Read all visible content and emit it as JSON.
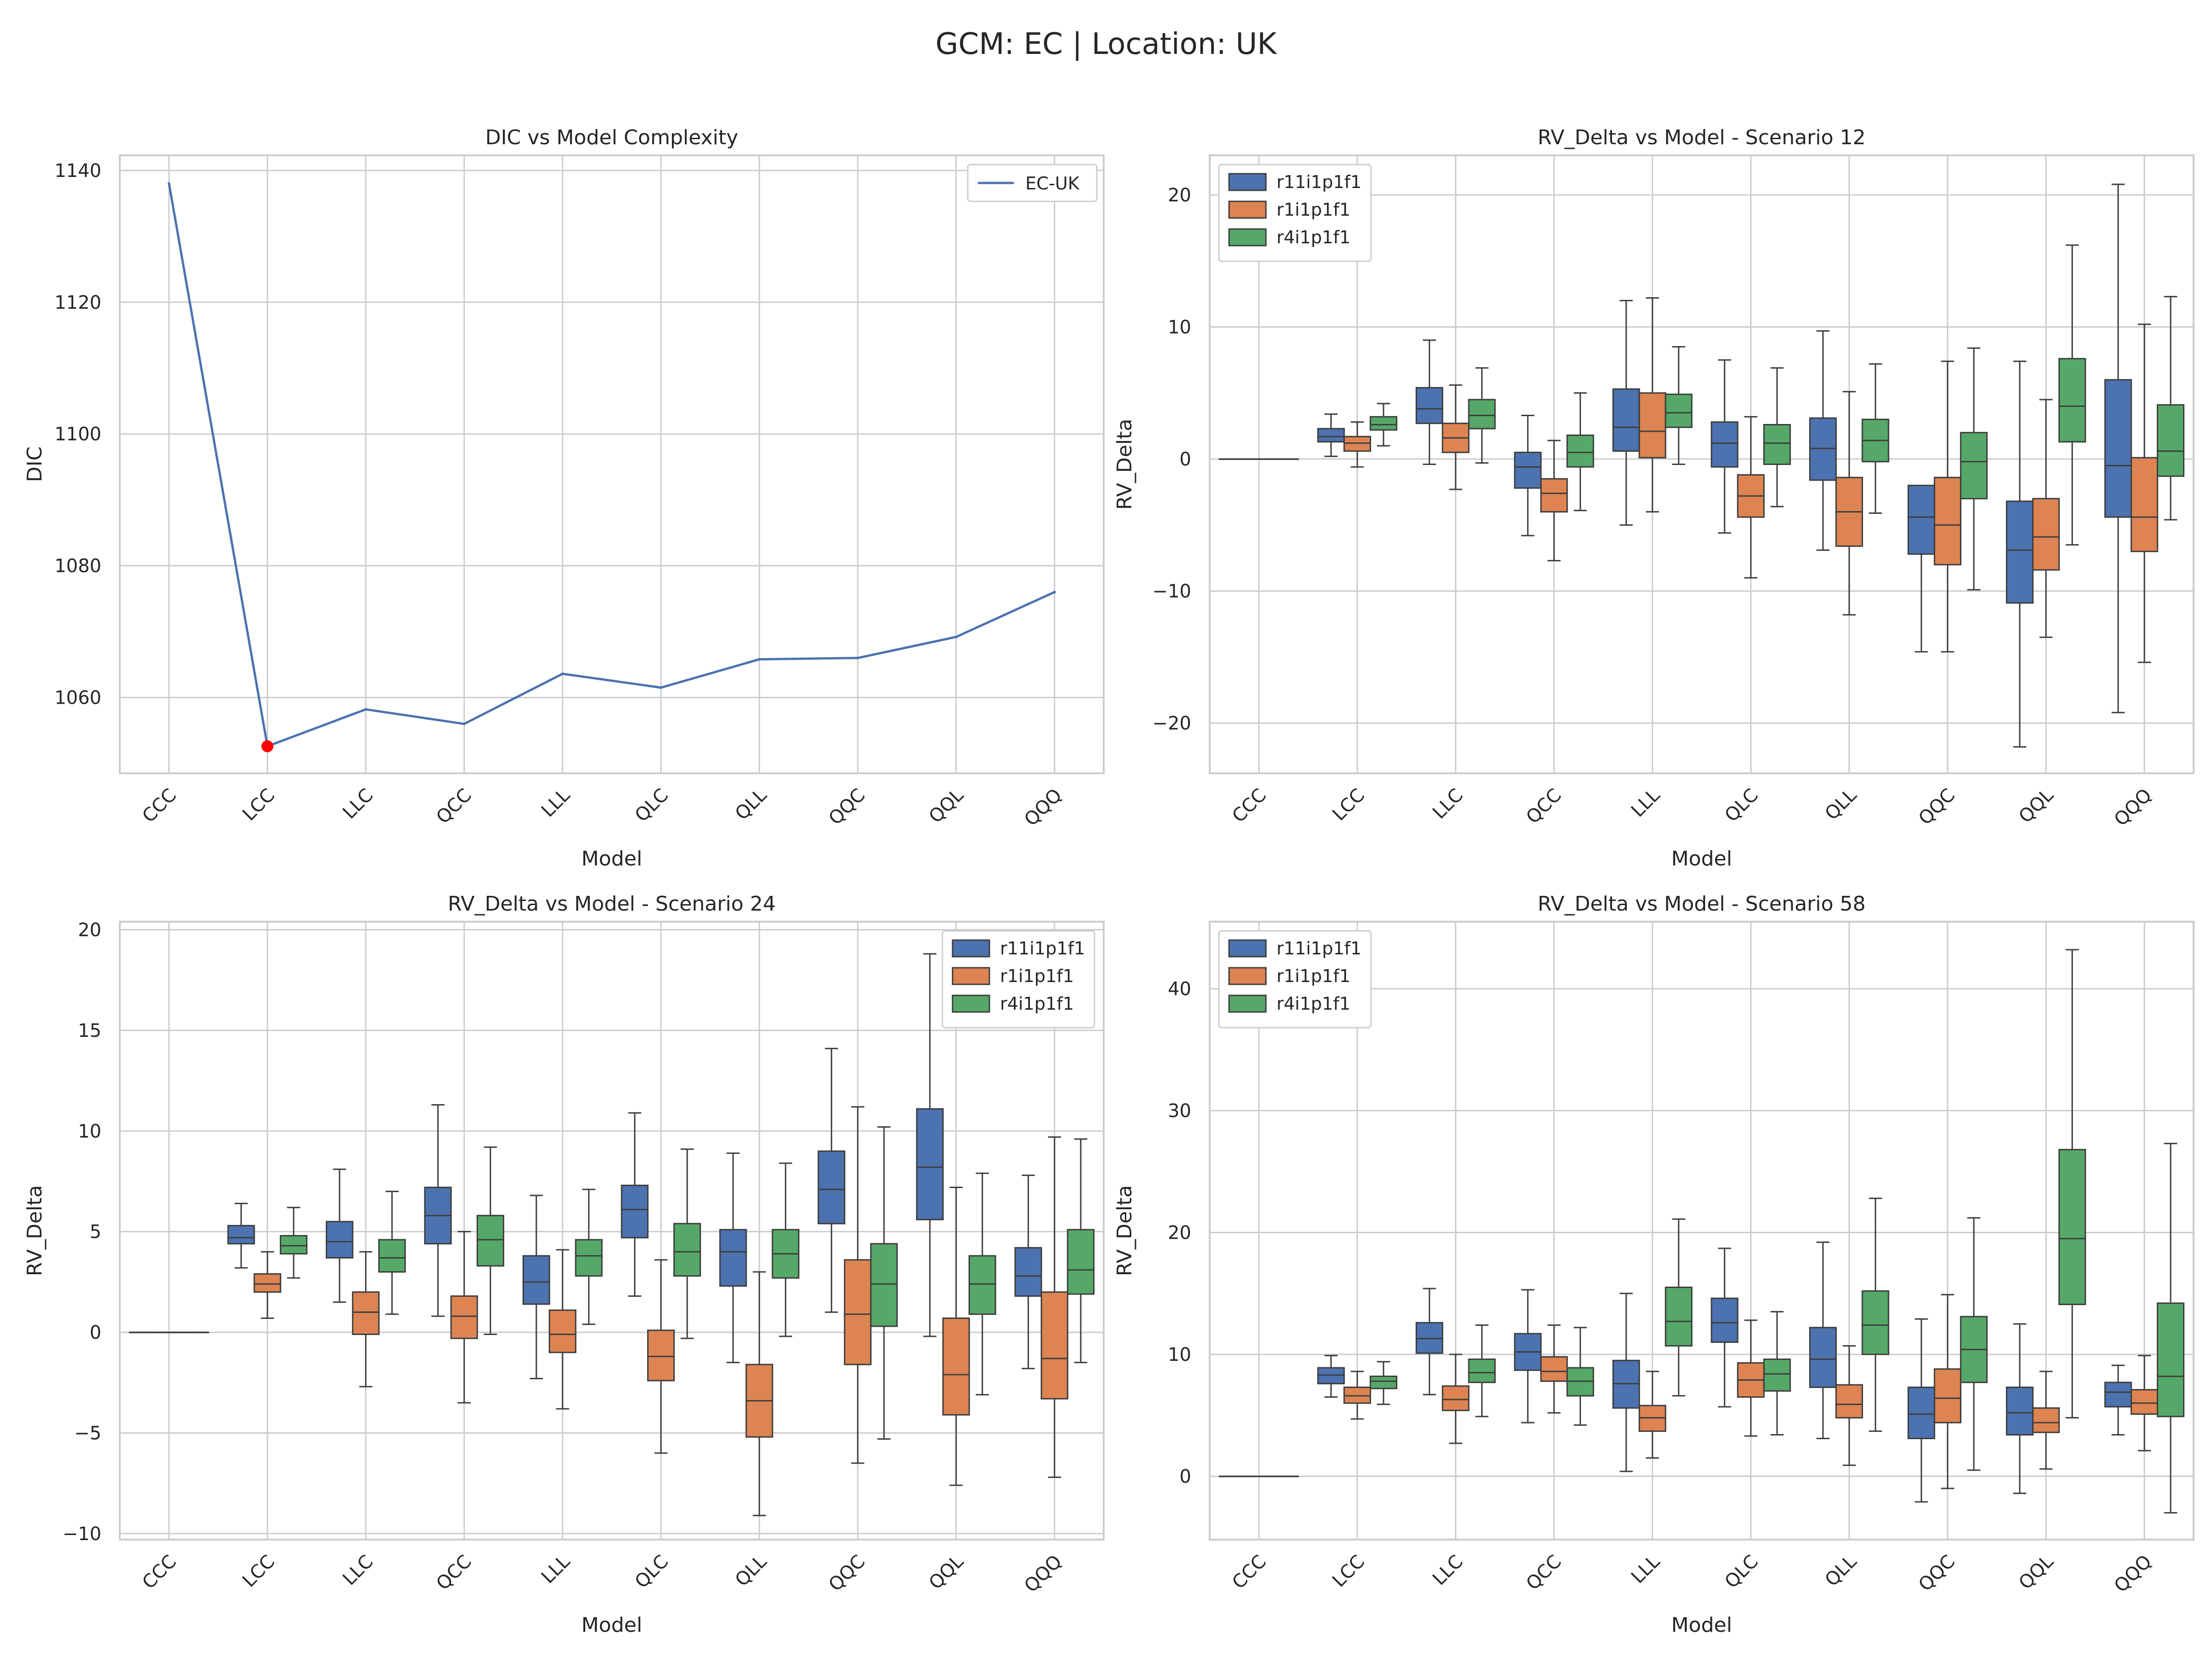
{
  "figure": {
    "suptitle": "GCM: EC | Location: UK"
  },
  "colors": {
    "line": "#4c72b0",
    "highlight": "#ff0000",
    "grid": "#cccccc",
    "axes_edge": "#cccccc",
    "box_edge": "#3d3d3d",
    "series": [
      "#4c72b0",
      "#dd8452",
      "#55a868"
    ]
  },
  "chart_data": [
    {
      "type": "line",
      "title": "DIC vs Model Complexity",
      "xlabel": "Model",
      "ylabel": "DIC",
      "categories": [
        "CCC",
        "LCC",
        "LLC",
        "QCC",
        "LLL",
        "QLC",
        "QLL",
        "QQC",
        "QQL",
        "QQQ"
      ],
      "series": [
        {
          "name": "EC-UK",
          "values": [
            1138,
            1052.6,
            1058.2,
            1056,
            1063.6,
            1061.5,
            1065.8,
            1066,
            1069.2,
            1076
          ]
        }
      ],
      "highlight_point": {
        "category": "LCC",
        "value": 1052.6,
        "color": "#ff0000"
      },
      "ylim": [
        1048.5,
        1142.3
      ],
      "yticks": [
        1060,
        1080,
        1100,
        1120,
        1140
      ],
      "ytick_labels": [
        "1060",
        "1080",
        "1100",
        "1120",
        "1140"
      ],
      "legend": "upper right",
      "grid": true
    },
    {
      "type": "box",
      "title": "RV_Delta vs Model - Scenario 12",
      "xlabel": "Model",
      "ylabel": "RV_Delta",
      "categories": [
        "CCC",
        "LCC",
        "LLC",
        "QCC",
        "LLL",
        "QLC",
        "QLL",
        "QQC",
        "QQL",
        "QQQ"
      ],
      "ylim": [
        -23.8,
        23
      ],
      "yticks": [
        -20,
        -10,
        0,
        10,
        20
      ],
      "ytick_labels": [
        "−20",
        "−10",
        "0",
        "10",
        "20"
      ],
      "legend": "upper left",
      "grid": true,
      "series": [
        {
          "name": "r11i1p1f1",
          "boxes": [
            {
              "whislo": 0,
              "q1": 0,
              "med": 0,
              "q3": 0,
              "whishi": 0
            },
            {
              "whislo": 0.2,
              "q1": 1.3,
              "med": 1.7,
              "q3": 2.3,
              "whishi": 3.4
            },
            {
              "whislo": -0.4,
              "q1": 2.7,
              "med": 3.8,
              "q3": 5.4,
              "whishi": 9
            },
            {
              "whislo": -5.8,
              "q1": -2.2,
              "med": -0.6,
              "q3": 0.5,
              "whishi": 3.3
            },
            {
              "whislo": -5,
              "q1": 0.6,
              "med": 2.4,
              "q3": 5.3,
              "whishi": 12
            },
            {
              "whislo": -5.6,
              "q1": -0.6,
              "med": 1.2,
              "q3": 2.8,
              "whishi": 7.5
            },
            {
              "whislo": -6.9,
              "q1": -1.6,
              "med": 0.8,
              "q3": 3.1,
              "whishi": 9.7
            },
            {
              "whislo": -14.6,
              "q1": -7.2,
              "med": -4.4,
              "q3": -2
            },
            {
              "whislo": -21.8,
              "q1": -10.9,
              "med": -6.9,
              "q3": -3.2,
              "whishi": 7.4
            },
            {
              "whislo": -19.2,
              "q1": -4.4,
              "med": -0.5,
              "q3": 6,
              "whishi": 20.8
            }
          ]
        },
        {
          "name": "r1i1p1f1",
          "boxes": [
            {
              "whislo": 0,
              "q1": 0,
              "med": 0,
              "q3": 0,
              "whishi": 0
            },
            {
              "whislo": -0.6,
              "q1": 0.6,
              "med": 1.2,
              "q3": 1.7,
              "whishi": 2.8
            },
            {
              "whislo": -2.3,
              "q1": 0.5,
              "med": 1.6,
              "q3": 2.7,
              "whishi": 5.6
            },
            {
              "whislo": -7.7,
              "q1": -4,
              "med": -2.6,
              "q3": -1.5,
              "whishi": 1.4
            },
            {
              "whislo": -4,
              "q1": 0.1,
              "med": 2.1,
              "q3": 5,
              "whishi": 12.2
            },
            {
              "whislo": -9,
              "q1": -4.4,
              "med": -2.8,
              "q3": -1.2,
              "whishi": 3.2
            },
            {
              "whislo": -11.8,
              "q1": -6.6,
              "med": -4,
              "q3": -1.4,
              "whishi": 5.1
            },
            {
              "whislo": -14.6,
              "q1": -8,
              "med": -5,
              "q3": -1.4,
              "whishi": 7.4
            },
            {
              "whislo": -13.5,
              "q1": -8.4,
              "med": -5.9,
              "q3": -3,
              "whishi": 4.5
            },
            {
              "whislo": -15.4,
              "q1": -7,
              "med": -4.4,
              "q3": 0.1,
              "whishi": 10.2
            }
          ]
        },
        {
          "name": "r4i1p1f1",
          "boxes": [
            {
              "whislo": 0,
              "q1": 0,
              "med": 0,
              "q3": 0,
              "whishi": 0
            },
            {
              "whislo": 1,
              "q1": 2.2,
              "med": 2.6,
              "q3": 3.2,
              "whishi": 4.2
            },
            {
              "whislo": -0.3,
              "q1": 2.3,
              "med": 3.3,
              "q3": 4.5,
              "whishi": 6.9
            },
            {
              "whislo": -3.9,
              "q1": -0.6,
              "med": 0.5,
              "q3": 1.8,
              "whishi": 5
            },
            {
              "whislo": -0.4,
              "q1": 2.4,
              "med": 3.5,
              "q3": 4.9,
              "whishi": 8.5
            },
            {
              "whislo": -3.6,
              "q1": -0.4,
              "med": 1.2,
              "q3": 2.6,
              "whishi": 6.9
            },
            {
              "whislo": -4.1,
              "q1": -0.2,
              "med": 1.4,
              "q3": 3,
              "whishi": 7.2
            },
            {
              "whislo": -9.9,
              "q1": -3,
              "med": -0.2,
              "q3": 2,
              "whishi": 8.4
            },
            {
              "whislo": -6.5,
              "q1": 1.3,
              "med": 4,
              "q3": 7.6,
              "whishi": 16.2
            },
            {
              "whislo": -4.6,
              "q1": -1.3,
              "med": 0.6,
              "q3": 4.1,
              "whishi": 12.3
            }
          ]
        }
      ]
    },
    {
      "type": "box",
      "title": "RV_Delta vs Model - Scenario 24",
      "xlabel": "Model",
      "ylabel": "RV_Delta",
      "categories": [
        "CCC",
        "LCC",
        "LLC",
        "QCC",
        "LLL",
        "QLC",
        "QLL",
        "QQC",
        "QQL",
        "QQQ"
      ],
      "ylim": [
        -10.3,
        20.4
      ],
      "yticks": [
        -10,
        -5,
        0,
        5,
        10,
        15,
        20
      ],
      "ytick_labels": [
        "−10",
        "−5",
        "0",
        "5",
        "10",
        "15",
        "20"
      ],
      "legend": "upper right",
      "grid": true,
      "series": [
        {
          "name": "r11i1p1f1",
          "boxes": [
            {
              "whislo": 0,
              "q1": 0,
              "med": 0,
              "q3": 0,
              "whishi": 0
            },
            {
              "whislo": 3.2,
              "q1": 4.4,
              "med": 4.7,
              "q3": 5.3,
              "whishi": 6.4
            },
            {
              "whislo": 1.5,
              "q1": 3.7,
              "med": 4.5,
              "q3": 5.5,
              "whishi": 8.1
            },
            {
              "whislo": 0.8,
              "q1": 4.4,
              "med": 5.8,
              "q3": 7.2,
              "whishi": 11.3
            },
            {
              "whislo": -2.3,
              "q1": 1.4,
              "med": 2.5,
              "q3": 3.8,
              "whishi": 6.8
            },
            {
              "whislo": 1.8,
              "q1": 4.7,
              "med": 6.1,
              "q3": 7.3,
              "whishi": 10.9
            },
            {
              "whislo": -1.5,
              "q1": 2.3,
              "med": 4,
              "q3": 5.1,
              "whishi": 8.9
            },
            {
              "whislo": 1,
              "q1": 5.4,
              "med": 7.1,
              "q3": 9,
              "whishi": 14.1
            },
            {
              "whislo": -0.2,
              "q1": 5.6,
              "med": 8.2,
              "q3": 11.1,
              "whishi": 18.8
            },
            {
              "whislo": -1.8,
              "q1": 1.8,
              "med": 2.8,
              "q3": 4.2,
              "whishi": 7.8
            }
          ]
        },
        {
          "name": "r1i1p1f1",
          "boxes": [
            {
              "whislo": 0,
              "q1": 0,
              "med": 0,
              "q3": 0,
              "whishi": 0
            },
            {
              "whislo": 0.7,
              "q1": 2,
              "med": 2.4,
              "q3": 2.9,
              "whishi": 4
            },
            {
              "whislo": -2.7,
              "q1": -0.1,
              "med": 1,
              "q3": 2,
              "whishi": 4
            },
            {
              "whislo": -3.5,
              "q1": -0.3,
              "med": 0.8,
              "q3": 1.8,
              "whishi": 5
            },
            {
              "whislo": -3.8,
              "q1": -1,
              "med": -0.1,
              "q3": 1.1,
              "whishi": 4.1
            },
            {
              "whislo": -6,
              "q1": -2.4,
              "med": -1.2,
              "q3": 0.1,
              "whishi": 3.6
            },
            {
              "whislo": -9.1,
              "q1": -5.2,
              "med": -3.4,
              "q3": -1.6,
              "whishi": 3
            },
            {
              "whislo": -6.5,
              "q1": -1.6,
              "med": 0.9,
              "q3": 3.6,
              "whishi": 11.2
            },
            {
              "whislo": -7.6,
              "q1": -4.1,
              "med": -2.1,
              "q3": 0.7,
              "whishi": 7.2
            },
            {
              "whislo": -7.2,
              "q1": -3.3,
              "med": -1.3,
              "q3": 2,
              "whishi": 9.7
            }
          ]
        },
        {
          "name": "r4i1p1f1",
          "boxes": [
            {
              "whislo": 0,
              "q1": 0,
              "med": 0,
              "q3": 0,
              "whishi": 0
            },
            {
              "whislo": 2.7,
              "q1": 3.9,
              "med": 4.3,
              "q3": 4.8,
              "whishi": 6.2
            },
            {
              "whislo": 0.9,
              "q1": 3,
              "med": 3.7,
              "q3": 4.6,
              "whishi": 7
            },
            {
              "whislo": -0.1,
              "q1": 3.3,
              "med": 4.6,
              "q3": 5.8,
              "whishi": 9.2
            },
            {
              "whislo": 0.4,
              "q1": 2.8,
              "med": 3.8,
              "q3": 4.6,
              "whishi": 7.1
            },
            {
              "whislo": -0.3,
              "q1": 2.8,
              "med": 4,
              "q3": 5.4,
              "whishi": 9.1
            },
            {
              "whislo": -0.2,
              "q1": 2.7,
              "med": 3.9,
              "q3": 5.1,
              "whishi": 8.4
            },
            {
              "whislo": -5.3,
              "q1": 0.3,
              "med": 2.4,
              "q3": 4.4,
              "whishi": 10.2
            },
            {
              "whislo": -3.1,
              "q1": 0.9,
              "med": 2.4,
              "q3": 3.8,
              "whishi": 7.9
            },
            {
              "whislo": -1.5,
              "q1": 1.9,
              "med": 3.1,
              "q3": 5.1,
              "whishi": 9.6
            }
          ]
        }
      ]
    },
    {
      "type": "box",
      "title": "RV_Delta vs Model - Scenario 58",
      "xlabel": "Model",
      "ylabel": "RV_Delta",
      "categories": [
        "CCC",
        "LCC",
        "LLC",
        "QCC",
        "LLL",
        "QLC",
        "QLL",
        "QQC",
        "QQL",
        "QQQ"
      ],
      "ylim": [
        -5.2,
        45.5
      ],
      "yticks": [
        0,
        10,
        20,
        30,
        40
      ],
      "ytick_labels": [
        "0",
        "10",
        "20",
        "30",
        "40"
      ],
      "legend": "upper left",
      "grid": true,
      "series": [
        {
          "name": "r11i1p1f1",
          "boxes": [
            {
              "whislo": 0,
              "q1": 0,
              "med": 0,
              "q3": 0,
              "whishi": 0
            },
            {
              "whislo": 6.5,
              "q1": 7.6,
              "med": 8.3,
              "q3": 8.9,
              "whishi": 9.9
            },
            {
              "whislo": 6.7,
              "q1": 10.1,
              "med": 11.3,
              "q3": 12.6,
              "whishi": 15.4
            },
            {
              "whislo": 4.4,
              "q1": 8.7,
              "med": 10.2,
              "q3": 11.7,
              "whishi": 15.3
            },
            {
              "whislo": 0.4,
              "q1": 5.6,
              "med": 7.6,
              "q3": 9.5,
              "whishi": 15
            },
            {
              "whislo": 5.7,
              "q1": 11,
              "med": 12.6,
              "q3": 14.6,
              "whishi": 18.7
            },
            {
              "whislo": 3.1,
              "q1": 7.3,
              "med": 9.6,
              "q3": 12.2,
              "whishi": 19.2
            },
            {
              "whislo": -2.1,
              "q1": 3.1,
              "med": 5.1,
              "q3": 7.3,
              "whishi": 12.9
            },
            {
              "whislo": -1.4,
              "q1": 3.4,
              "med": 5.2,
              "q3": 7.3,
              "whishi": 12.5
            },
            {
              "whislo": 3.4,
              "q1": 5.7,
              "med": 6.9,
              "q3": 7.7,
              "whishi": 9.1
            }
          ]
        },
        {
          "name": "r1i1p1f1",
          "boxes": [
            {
              "whislo": 0,
              "q1": 0,
              "med": 0,
              "q3": 0,
              "whishi": 0
            },
            {
              "whislo": 4.7,
              "q1": 6,
              "med": 6.6,
              "q3": 7.3,
              "whishi": 8.6
            },
            {
              "whislo": 2.7,
              "q1": 5.4,
              "med": 6.3,
              "q3": 7.4,
              "whishi": 10
            },
            {
              "whislo": 5.2,
              "q1": 7.8,
              "med": 8.6,
              "q3": 9.8,
              "whishi": 12.4
            },
            {
              "whislo": 1.5,
              "q1": 3.7,
              "med": 4.8,
              "q3": 5.8,
              "whishi": 8.6
            },
            {
              "whislo": 3.3,
              "q1": 6.5,
              "med": 7.9,
              "q3": 9.3,
              "whishi": 12.8
            },
            {
              "whislo": 0.9,
              "q1": 4.8,
              "med": 5.9,
              "q3": 7.5,
              "whishi": 10.7
            },
            {
              "whislo": -1,
              "q1": 4.4,
              "med": 6.4,
              "q3": 8.8,
              "whishi": 14.9
            },
            {
              "whislo": 0.6,
              "q1": 3.6,
              "med": 4.4,
              "q3": 5.6,
              "whishi": 8.6
            },
            {
              "whislo": 2.1,
              "q1": 5.1,
              "med": 6,
              "q3": 7.1,
              "whishi": 9.9
            }
          ]
        },
        {
          "name": "r4i1p1f1",
          "boxes": [
            {
              "whislo": 0,
              "q1": 0,
              "med": 0,
              "q3": 0,
              "whishi": 0
            },
            {
              "whislo": 5.9,
              "q1": 7.2,
              "med": 7.8,
              "q3": 8.2,
              "whishi": 9.4
            },
            {
              "whislo": 4.9,
              "q1": 7.7,
              "med": 8.5,
              "q3": 9.6,
              "whishi": 12.4
            },
            {
              "whislo": 4.2,
              "q1": 6.6,
              "med": 7.8,
              "q3": 8.9,
              "whishi": 12.2
            },
            {
              "whislo": 6.6,
              "q1": 10.7,
              "med": 12.7,
              "q3": 15.5,
              "whishi": 21.1
            },
            {
              "whislo": 3.4,
              "q1": 7,
              "med": 8.4,
              "q3": 9.6,
              "whishi": 13.5
            },
            {
              "whislo": 3.7,
              "q1": 10,
              "med": 12.4,
              "q3": 15.2,
              "whishi": 22.8
            },
            {
              "whislo": 0.5,
              "q1": 7.7,
              "med": 10.4,
              "q3": 13.1,
              "whishi": 21.2
            },
            {
              "whislo": 4.8,
              "q1": 14.1,
              "med": 19.5,
              "q3": 26.8,
              "whishi": 43.2
            },
            {
              "whislo": -3,
              "q1": 4.9,
              "med": 8.2,
              "q3": 14.2,
              "whishi": 27.3
            }
          ]
        }
      ]
    }
  ]
}
